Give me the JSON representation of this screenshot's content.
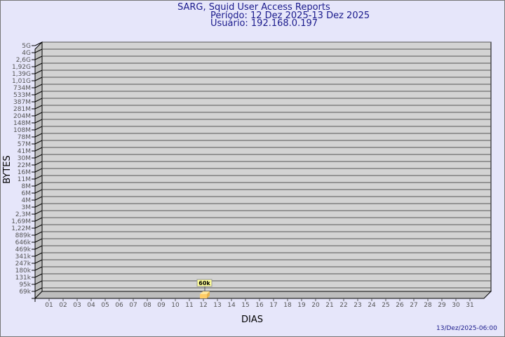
{
  "chart_data": {
    "type": "bar",
    "title": "SARG, Squid User Access Reports",
    "subtitle_period": "Período: 12 Dez 2025-13 Dez 2025",
    "subtitle_user": "Usuário: 192.168.0.197",
    "xlabel": "DIAS",
    "ylabel": "BYTES",
    "footer": "13/Dez/2025-06:00",
    "categories": [
      "01",
      "02",
      "03",
      "04",
      "05",
      "06",
      "07",
      "08",
      "09",
      "10",
      "11",
      "12",
      "13",
      "14",
      "15",
      "16",
      "17",
      "18",
      "19",
      "20",
      "21",
      "22",
      "23",
      "24",
      "25",
      "26",
      "27",
      "28",
      "29",
      "30",
      "31"
    ],
    "y_tick_labels": [
      "5G",
      "4G",
      "2,6G",
      "1,92G",
      "1,39G",
      "1,01G",
      "734M",
      "533M",
      "387M",
      "281M",
      "204M",
      "148M",
      "108M",
      "78M",
      "57M",
      "41M",
      "30M",
      "22M",
      "16M",
      "11M",
      "8M",
      "6M",
      "4M",
      "3M",
      "2,3M",
      "1,69M",
      "1,22M",
      "889k",
      "646k",
      "469k",
      "341k",
      "247k",
      "180k",
      "131k",
      "95k",
      "69k"
    ],
    "y_scale": "log",
    "grid": true,
    "bars": [
      {
        "category": "12",
        "value": 60000,
        "label": "60k"
      }
    ],
    "colors": {
      "background": "#e6e6fa",
      "plot": "#d3d3d3",
      "bar": "#ffcc66",
      "text": "#1a1a8c",
      "axis_text": "#555555"
    }
  }
}
